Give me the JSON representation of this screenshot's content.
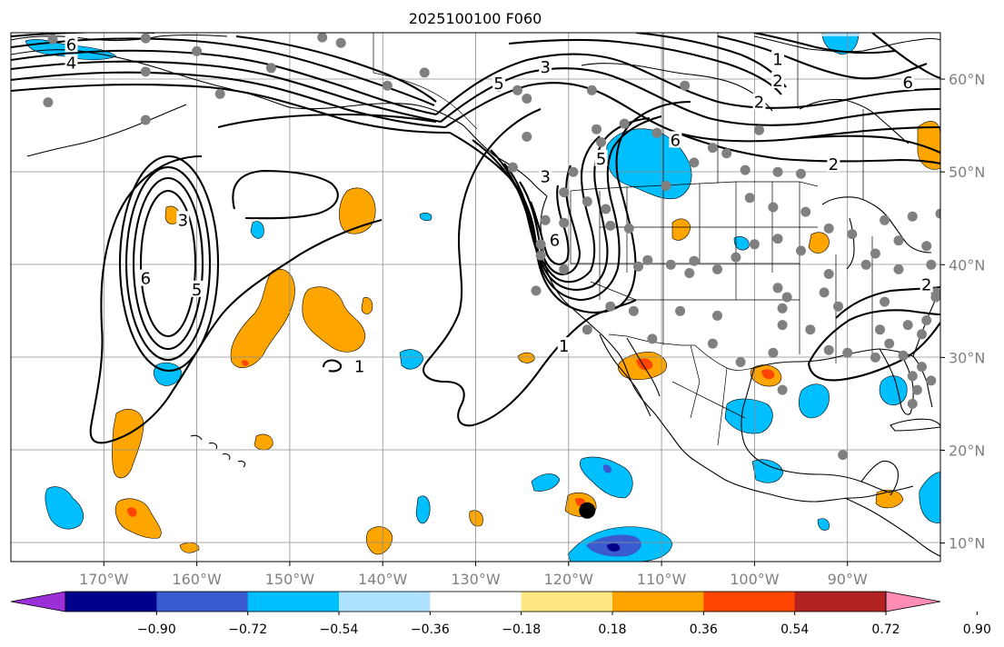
{
  "title": "2025100100 F060",
  "chart_data": {
    "type": "map",
    "projection": "equirectangular",
    "extent": {
      "lon_min": -180,
      "lon_max": -80,
      "lat_min": 8,
      "lat_max": 65
    },
    "lon_ticks": [
      {
        "lon": -170,
        "label": "170°W"
      },
      {
        "lon": -160,
        "label": "160°W"
      },
      {
        "lon": -150,
        "label": "150°W"
      },
      {
        "lon": -140,
        "label": "140°W"
      },
      {
        "lon": -130,
        "label": "130°W"
      },
      {
        "lon": -120,
        "label": "120°W"
      },
      {
        "lon": -110,
        "label": "110°W"
      },
      {
        "lon": -100,
        "label": "100°W"
      },
      {
        "lon": -90,
        "label": "90°W"
      }
    ],
    "lat_ticks": [
      {
        "lat": 60,
        "label": "60°N"
      },
      {
        "lat": 50,
        "label": "50°N"
      },
      {
        "lat": 40,
        "label": "40°N"
      },
      {
        "lat": 30,
        "label": "30°N"
      },
      {
        "lat": 20,
        "label": "20°N"
      },
      {
        "lat": 10,
        "label": "10°N"
      }
    ],
    "colorbar": {
      "boundaries": [
        -0.9,
        -0.72,
        -0.54,
        -0.36,
        -0.18,
        0.18,
        0.36,
        0.54,
        0.72,
        0.9
      ],
      "tick_labels": [
        "−0.90",
        "−0.72",
        "−0.54",
        "−0.36",
        "−0.18",
        "0.18",
        "0.36",
        "0.54",
        "0.72",
        "0.90"
      ],
      "colors": [
        "#9b30d9",
        "#00008b",
        "#3a5bd0",
        "#00bfff",
        "#aee3ff",
        "#ffffff",
        "#ffe680",
        "#ffa500",
        "#ff4500",
        "#b22222",
        "#ff8cb4"
      ],
      "extend": "both"
    },
    "contour_labels": [
      {
        "text": "6",
        "lon": -173.5,
        "lat": 63.7
      },
      {
        "text": "4",
        "lon": -173.5,
        "lat": 61.7
      },
      {
        "text": "3",
        "lon": -122.5,
        "lat": 61.3
      },
      {
        "text": "5",
        "lon": -127.5,
        "lat": 59.5
      },
      {
        "text": "1",
        "lon": -97.5,
        "lat": 62.1
      },
      {
        "text": "2",
        "lon": -97.5,
        "lat": 59.8
      },
      {
        "text": "6",
        "lon": -83.5,
        "lat": 59.6
      },
      {
        "text": "2",
        "lon": -99.5,
        "lat": 57.5
      },
      {
        "text": "6",
        "lon": -108.5,
        "lat": 53.4
      },
      {
        "text": "2",
        "lon": -91.5,
        "lat": 50.8
      },
      {
        "text": "5",
        "lon": -116.5,
        "lat": 51.4
      },
      {
        "text": "3",
        "lon": -122.5,
        "lat": 49.5
      },
      {
        "text": "3",
        "lon": -161.5,
        "lat": 44.8
      },
      {
        "text": "6",
        "lon": -165.5,
        "lat": 38.5
      },
      {
        "text": "5",
        "lon": -160.0,
        "lat": 37.3
      },
      {
        "text": "6",
        "lon": -121.5,
        "lat": 42.6
      },
      {
        "text": "1",
        "lon": -120.5,
        "lat": 31.2
      },
      {
        "text": "1",
        "lon": -142.5,
        "lat": 29.0
      },
      {
        "text": "2",
        "lon": -81.5,
        "lat": 37.8
      }
    ],
    "stations": [
      [
        -175.5,
        64.3
      ],
      [
        -165.5,
        64.4
      ],
      [
        -165.5,
        60.8
      ],
      [
        -160.0,
        63.0
      ],
      [
        -157.5,
        58.4
      ],
      [
        -152.0,
        61.2
      ],
      [
        -146.5,
        64.5
      ],
      [
        -144.5,
        63.9
      ],
      [
        -176.0,
        57.5
      ],
      [
        -165.5,
        55.6
      ],
      [
        -135.5,
        60.7
      ],
      [
        -139.5,
        59.3
      ],
      [
        -127.5,
        59.2
      ],
      [
        -124.5,
        57.9
      ],
      [
        -117.5,
        58.8
      ],
      [
        -107.5,
        59.3
      ],
      [
        -114.0,
        55.2
      ],
      [
        -116.5,
        53.2
      ],
      [
        -117.0,
        54.6
      ],
      [
        -124.5,
        53.8
      ],
      [
        -110.5,
        54.2
      ],
      [
        -106.5,
        51.0
      ],
      [
        -104.5,
        52.6
      ],
      [
        -103.0,
        52.0
      ],
      [
        -101.0,
        50.2
      ],
      [
        -99.5,
        54.5
      ],
      [
        -97.5,
        50.0
      ],
      [
        -95.0,
        49.8
      ],
      [
        -98.0,
        46.2
      ],
      [
        -94.5,
        45.7
      ],
      [
        -100.5,
        47.2
      ],
      [
        -109.5,
        48.5
      ],
      [
        -122.5,
        44.8
      ],
      [
        -123.0,
        42.2
      ],
      [
        -119.5,
        50.0
      ],
      [
        -120.5,
        47.8
      ],
      [
        -118.0,
        46.8
      ],
      [
        -116.0,
        46.0
      ],
      [
        -115.5,
        44.2
      ],
      [
        -113.5,
        43.9
      ],
      [
        -112.5,
        39.8
      ],
      [
        -111.5,
        40.5
      ],
      [
        -106.5,
        40.4
      ],
      [
        -109.0,
        40.0
      ],
      [
        -107.0,
        39.1
      ],
      [
        -104.0,
        39.5
      ],
      [
        -102.0,
        40.8
      ],
      [
        -100.0,
        42.2
      ],
      [
        -97.5,
        42.8
      ],
      [
        -92.0,
        43.9
      ],
      [
        -89.5,
        43.3
      ],
      [
        -86.0,
        44.8
      ],
      [
        -83.0,
        45.2
      ],
      [
        -80.0,
        45.5
      ],
      [
        -84.5,
        42.6
      ],
      [
        -87.0,
        41.2
      ],
      [
        -88.0,
        40.0
      ],
      [
        -84.5,
        39.5
      ],
      [
        -81.0,
        40.0
      ],
      [
        -80.5,
        37.0
      ],
      [
        -95.0,
        41.5
      ],
      [
        -92.0,
        39.0
      ],
      [
        -97.5,
        37.5
      ],
      [
        -96.5,
        36.5
      ],
      [
        -97.0,
        35.3
      ],
      [
        -97.0,
        33.5
      ],
      [
        -92.5,
        37.0
      ],
      [
        -91.0,
        35.5
      ],
      [
        -94.0,
        33.0
      ],
      [
        -92.0,
        30.8
      ],
      [
        -90.0,
        30.5
      ],
      [
        -87.0,
        30.0
      ],
      [
        -84.0,
        30.2
      ],
      [
        -82.0,
        29.0
      ],
      [
        -81.0,
        27.5
      ],
      [
        -85.5,
        31.5
      ],
      [
        -86.5,
        33.0
      ],
      [
        -83.5,
        33.5
      ],
      [
        -86.0,
        36.0
      ],
      [
        -81.5,
        34.0
      ],
      [
        -83.0,
        25.0
      ],
      [
        -82.5,
        26.5
      ],
      [
        -80.5,
        36.5
      ],
      [
        -113.0,
        35.0
      ],
      [
        -108.0,
        35.0
      ],
      [
        -104.0,
        34.5
      ],
      [
        -104.5,
        31.5
      ],
      [
        -98.0,
        30.5
      ],
      [
        -97.0,
        26.5
      ],
      [
        -101.5,
        29.5
      ],
      [
        -111.0,
        32.0
      ],
      [
        -115.5,
        35.5
      ],
      [
        -118.0,
        33.0
      ],
      [
        -120.5,
        39.5
      ],
      [
        -123.5,
        37.2
      ],
      [
        -123.0,
        41.0
      ],
      [
        -120.5,
        44.5
      ],
      [
        -125.5,
        58.8
      ],
      [
        -126.0,
        50.5
      ],
      [
        -90.5,
        19.5
      ],
      [
        -82.0,
        32.5
      ],
      [
        -83.0,
        28.0
      ],
      [
        -81.5,
        42.0
      ]
    ],
    "marker": {
      "lon": -118.0,
      "lat": 13.5,
      "label": "storm center"
    }
  }
}
